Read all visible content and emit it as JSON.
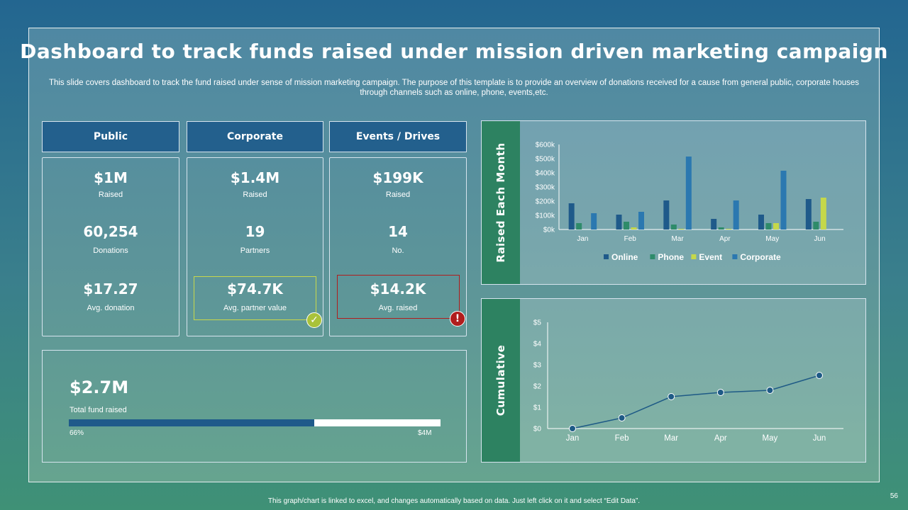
{
  "title": "Dashboard to track funds raised under mission driven marketing campaign",
  "subtitle": "This slide covers dashboard to track the fund raised under sense of mission marketing campaign. The purpose of this template is to provide an overview of donations received for a cause from general public, corporate houses through channels such as online, phone, events,etc.",
  "columns": [
    {
      "header": "Public",
      "m1_value": "$1M",
      "m1_label": "Raised",
      "m2_value": "60,254",
      "m2_label": "Donations",
      "m3_value": "$17.27",
      "m3_label": "Avg. donation"
    },
    {
      "header": "Corporate",
      "m1_value": "$1.4M",
      "m1_label": "Raised",
      "m2_value": "19",
      "m2_label": "Partners",
      "m3_value": "$74.7K",
      "m3_label": "Avg. partner value",
      "badge": "✓"
    },
    {
      "header": "Events / Drives",
      "m1_value": "$199K",
      "m1_label": "Raised",
      "m2_value": "14",
      "m2_label": "No.",
      "m3_value": "$14.2K",
      "m3_label": "Avg. raised",
      "badge": "!"
    }
  ],
  "total": {
    "value": "$2.7M",
    "label": "Total fund raised",
    "progress_label": "66%",
    "progress": 0.66,
    "max_label": "$4M"
  },
  "colors": {
    "online": "#1f5a8a",
    "phone": "#2e8b6a",
    "event": "#c5d84a",
    "corporate": "#2b78b0",
    "bar_fill": "#1f5a8a",
    "badge_ok": "#a9c23a",
    "badge_warn": "#b01d1d",
    "line": "#1e5a86"
  },
  "chart_data": [
    {
      "type": "bar",
      "title": "Raised Each Month",
      "categories": [
        "Jan",
        "Feb",
        "Mar",
        "Apr",
        "May",
        "Jun"
      ],
      "yticks": [
        "$0k",
        "$100k",
        "$200k",
        "$300k",
        "$400k",
        "$500k",
        "$600k"
      ],
      "ylim": [
        0,
        600
      ],
      "series": [
        {
          "name": "Online",
          "key": "online",
          "values": [
            185,
            105,
            205,
            75,
            105,
            215
          ]
        },
        {
          "name": "Phone",
          "key": "phone",
          "values": [
            45,
            55,
            35,
            15,
            45,
            55
          ]
        },
        {
          "name": "Event",
          "key": "event",
          "values": [
            0,
            15,
            5,
            5,
            45,
            225
          ]
        },
        {
          "name": "Corporate",
          "key": "corporate",
          "values": [
            115,
            125,
            515,
            205,
            415,
            0
          ]
        }
      ],
      "legend": "bottom"
    },
    {
      "type": "line",
      "title": "Cumulative",
      "categories": [
        "Jan",
        "Feb",
        "Mar",
        "Apr",
        "May",
        "Jun"
      ],
      "yticks": [
        "$0",
        "$1",
        "$2",
        "$3",
        "$4",
        "$5"
      ],
      "ylim": [
        0,
        5
      ],
      "values": [
        0,
        0.5,
        1.5,
        1.7,
        1.8,
        2.5
      ]
    }
  ],
  "footer": "This graph/chart is linked to excel, and changes automatically based on data. Just left click on it and select “Edit Data”.",
  "page_number": "56"
}
